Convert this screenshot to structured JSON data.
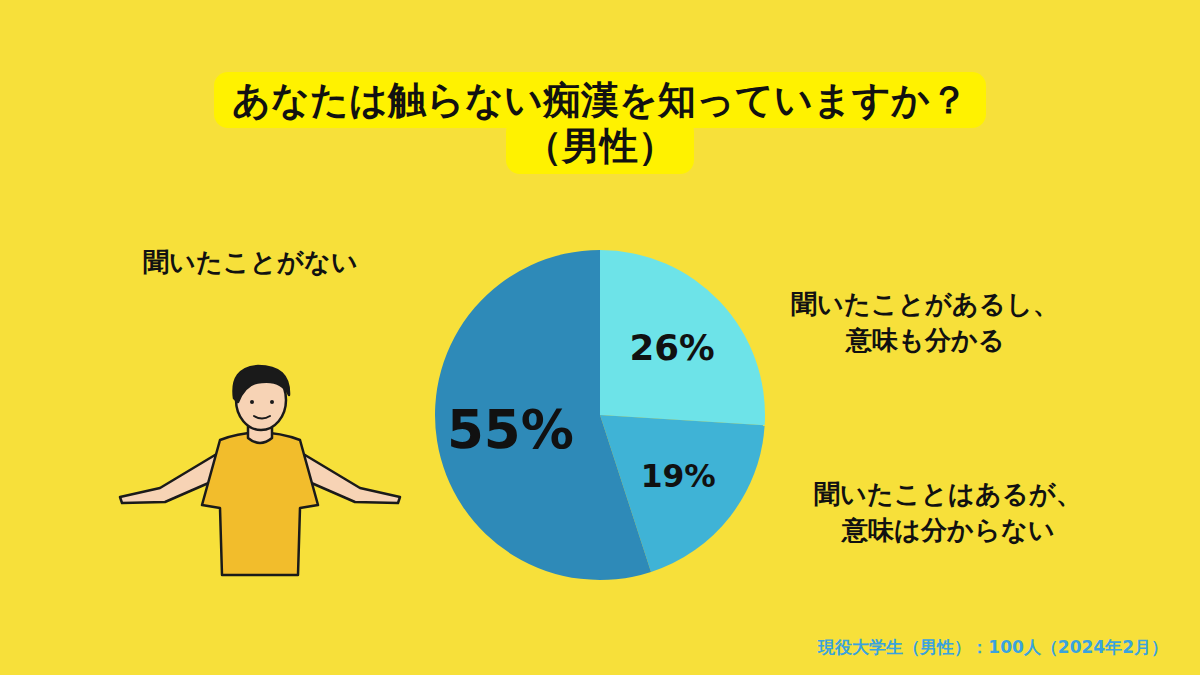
{
  "chart_data": {
    "type": "pie",
    "title": "あなたは触らない痴漢を知っていますか？",
    "subtitle": "（男性）",
    "categories": [
      "聞いたことがあるし、意味も分かる",
      "聞いたことはあるが、意味は分からない",
      "聞いたことがない"
    ],
    "values": [
      26,
      19,
      55
    ],
    "value_labels": [
      "26%",
      "19%",
      "55%"
    ],
    "colors": [
      "#6de3e8",
      "#3fb3d6",
      "#2e8ab8"
    ],
    "data_labels": true,
    "annotations": [
      "現役大学生（男性）：100人（2024年2月）"
    ]
  }
}
